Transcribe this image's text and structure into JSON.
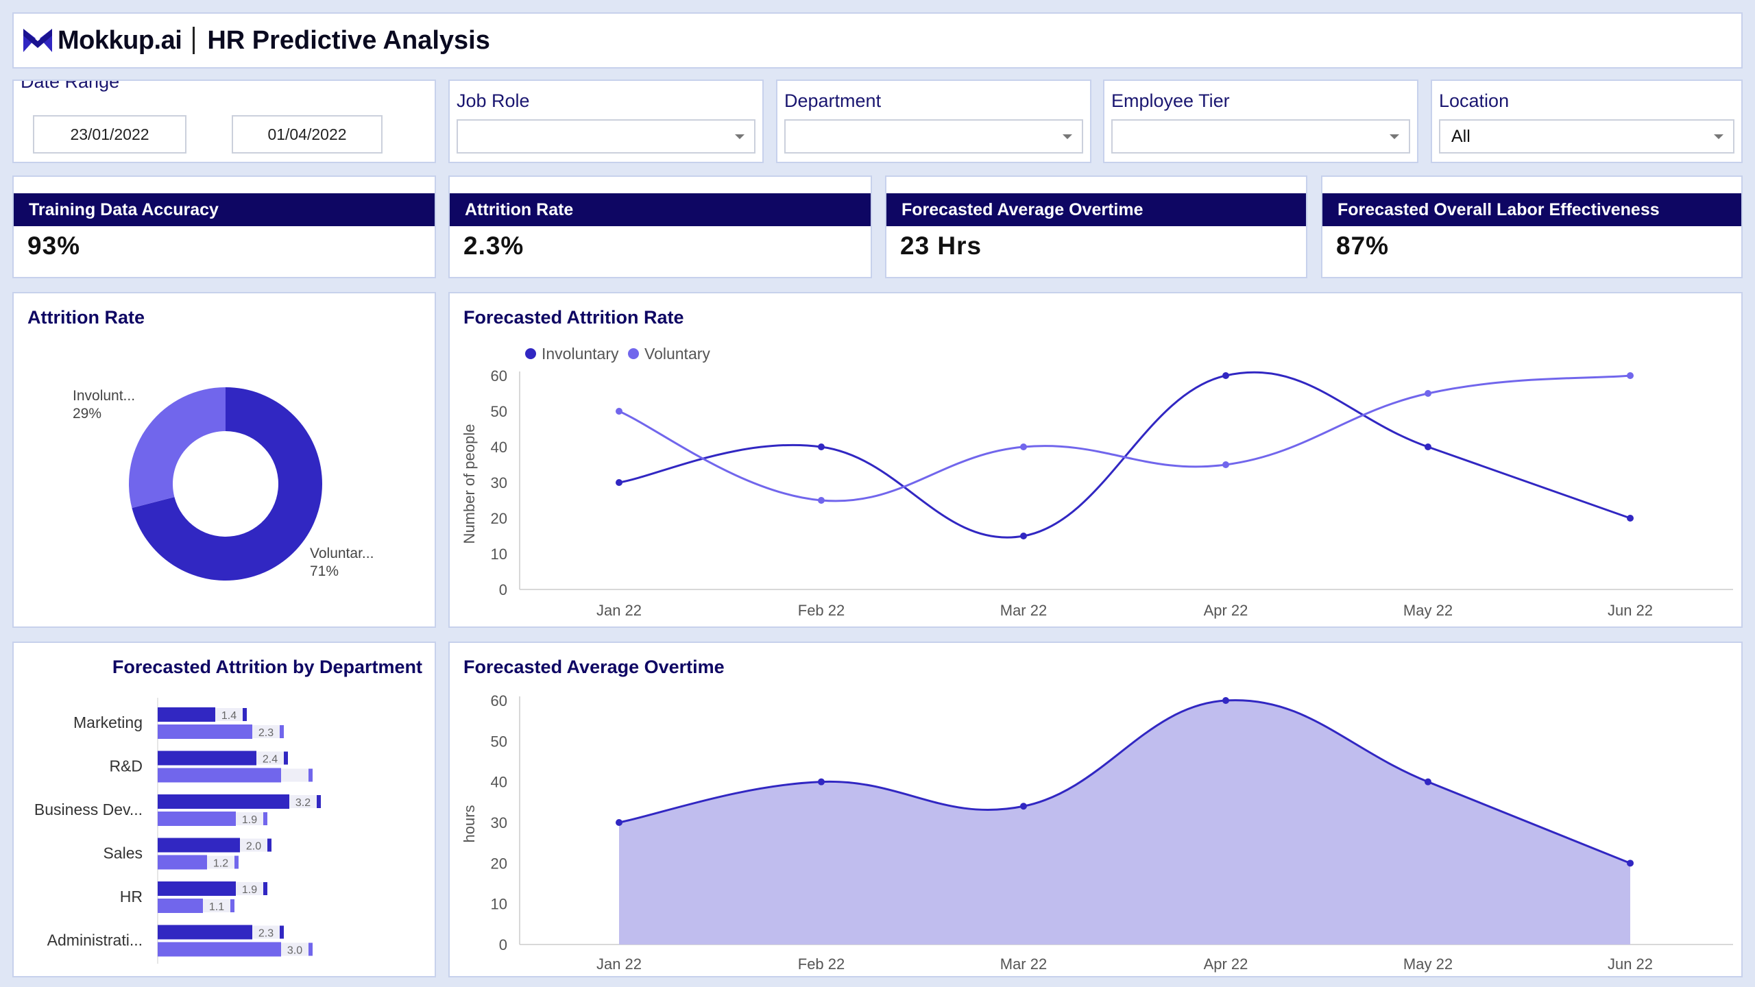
{
  "header": {
    "logo": "Mokkup.ai",
    "title": "HR Predictive Analysis"
  },
  "filters": {
    "date_range": {
      "label": "Date Range",
      "start": "23/01/2022",
      "end": "01/04/2022"
    },
    "job_role": {
      "label": "Job Role",
      "value": ""
    },
    "department": {
      "label": "Department",
      "value": ""
    },
    "employee_tier": {
      "label": "Employee Tier",
      "value": ""
    },
    "location": {
      "label": "Location",
      "value": "All"
    }
  },
  "kpis": [
    {
      "label": "Training Data Accuracy",
      "value": "93%"
    },
    {
      "label": "Attrition Rate",
      "value": "2.3%"
    },
    {
      "label": "Forecasted Average Overtime",
      "value": "23 Hrs"
    },
    {
      "label": "Forecasted Overall Labor Effectiveness",
      "value": "87%"
    }
  ],
  "colors": {
    "dark": "#3127c2",
    "light": "#7166ec",
    "navy": "#0e0663",
    "area": "#c0bdee"
  },
  "chart_data": [
    {
      "type": "pie",
      "title": "Attrition Rate",
      "labels": [
        "Involunt...",
        "Voluntar..."
      ],
      "values": [
        29,
        71
      ],
      "value_labels": [
        "29%",
        "71%"
      ]
    },
    {
      "type": "line",
      "title": "Forecasted Attrition Rate",
      "categories": [
        "Jan 22",
        "Feb 22",
        "Mar 22",
        "Apr 22",
        "May 22",
        "Jun 22"
      ],
      "series": [
        {
          "name": "Involuntary",
          "values": [
            30,
            40,
            15,
            60,
            40,
            20
          ]
        },
        {
          "name": "Voluntary",
          "values": [
            50,
            25,
            40,
            35,
            55,
            60
          ]
        }
      ],
      "ylabel": "Number of people",
      "ylim": [
        0,
        60
      ],
      "yticks": [
        "0",
        "10",
        "20",
        "30",
        "40",
        "50",
        "60"
      ],
      "legend": "top-left"
    },
    {
      "type": "bar",
      "orientation": "horizontal",
      "title": "Forecasted Attrition by Department",
      "categories": [
        "Marketing",
        "R&D",
        "Business Dev...",
        "Sales",
        "HR",
        "Administrati..."
      ],
      "series": [
        {
          "values": [
            1.4,
            2.4,
            3.2,
            2.0,
            1.9,
            2.3
          ],
          "labels": [
            "1.4",
            "2.4",
            "3.2",
            "2.0",
            "1.9",
            "2.3"
          ]
        },
        {
          "values": [
            2.3,
            3.0,
            1.9,
            1.2,
            1.1,
            3.0
          ],
          "labels": [
            "2.3",
            "",
            "1.9",
            "1.2",
            "1.1",
            "3.0"
          ]
        }
      ]
    },
    {
      "type": "area",
      "title": "Forecasted Average Overtime",
      "categories": [
        "Jan 22",
        "Feb 22",
        "Mar 22",
        "Apr 22",
        "May 22",
        "Jun 22"
      ],
      "series": [
        {
          "values": [
            30,
            40,
            34,
            60,
            40,
            20
          ]
        }
      ],
      "ylabel": "hours",
      "ylim": [
        0,
        60
      ],
      "yticks": [
        "0",
        "10",
        "20",
        "30",
        "40",
        "50",
        "60"
      ]
    }
  ]
}
